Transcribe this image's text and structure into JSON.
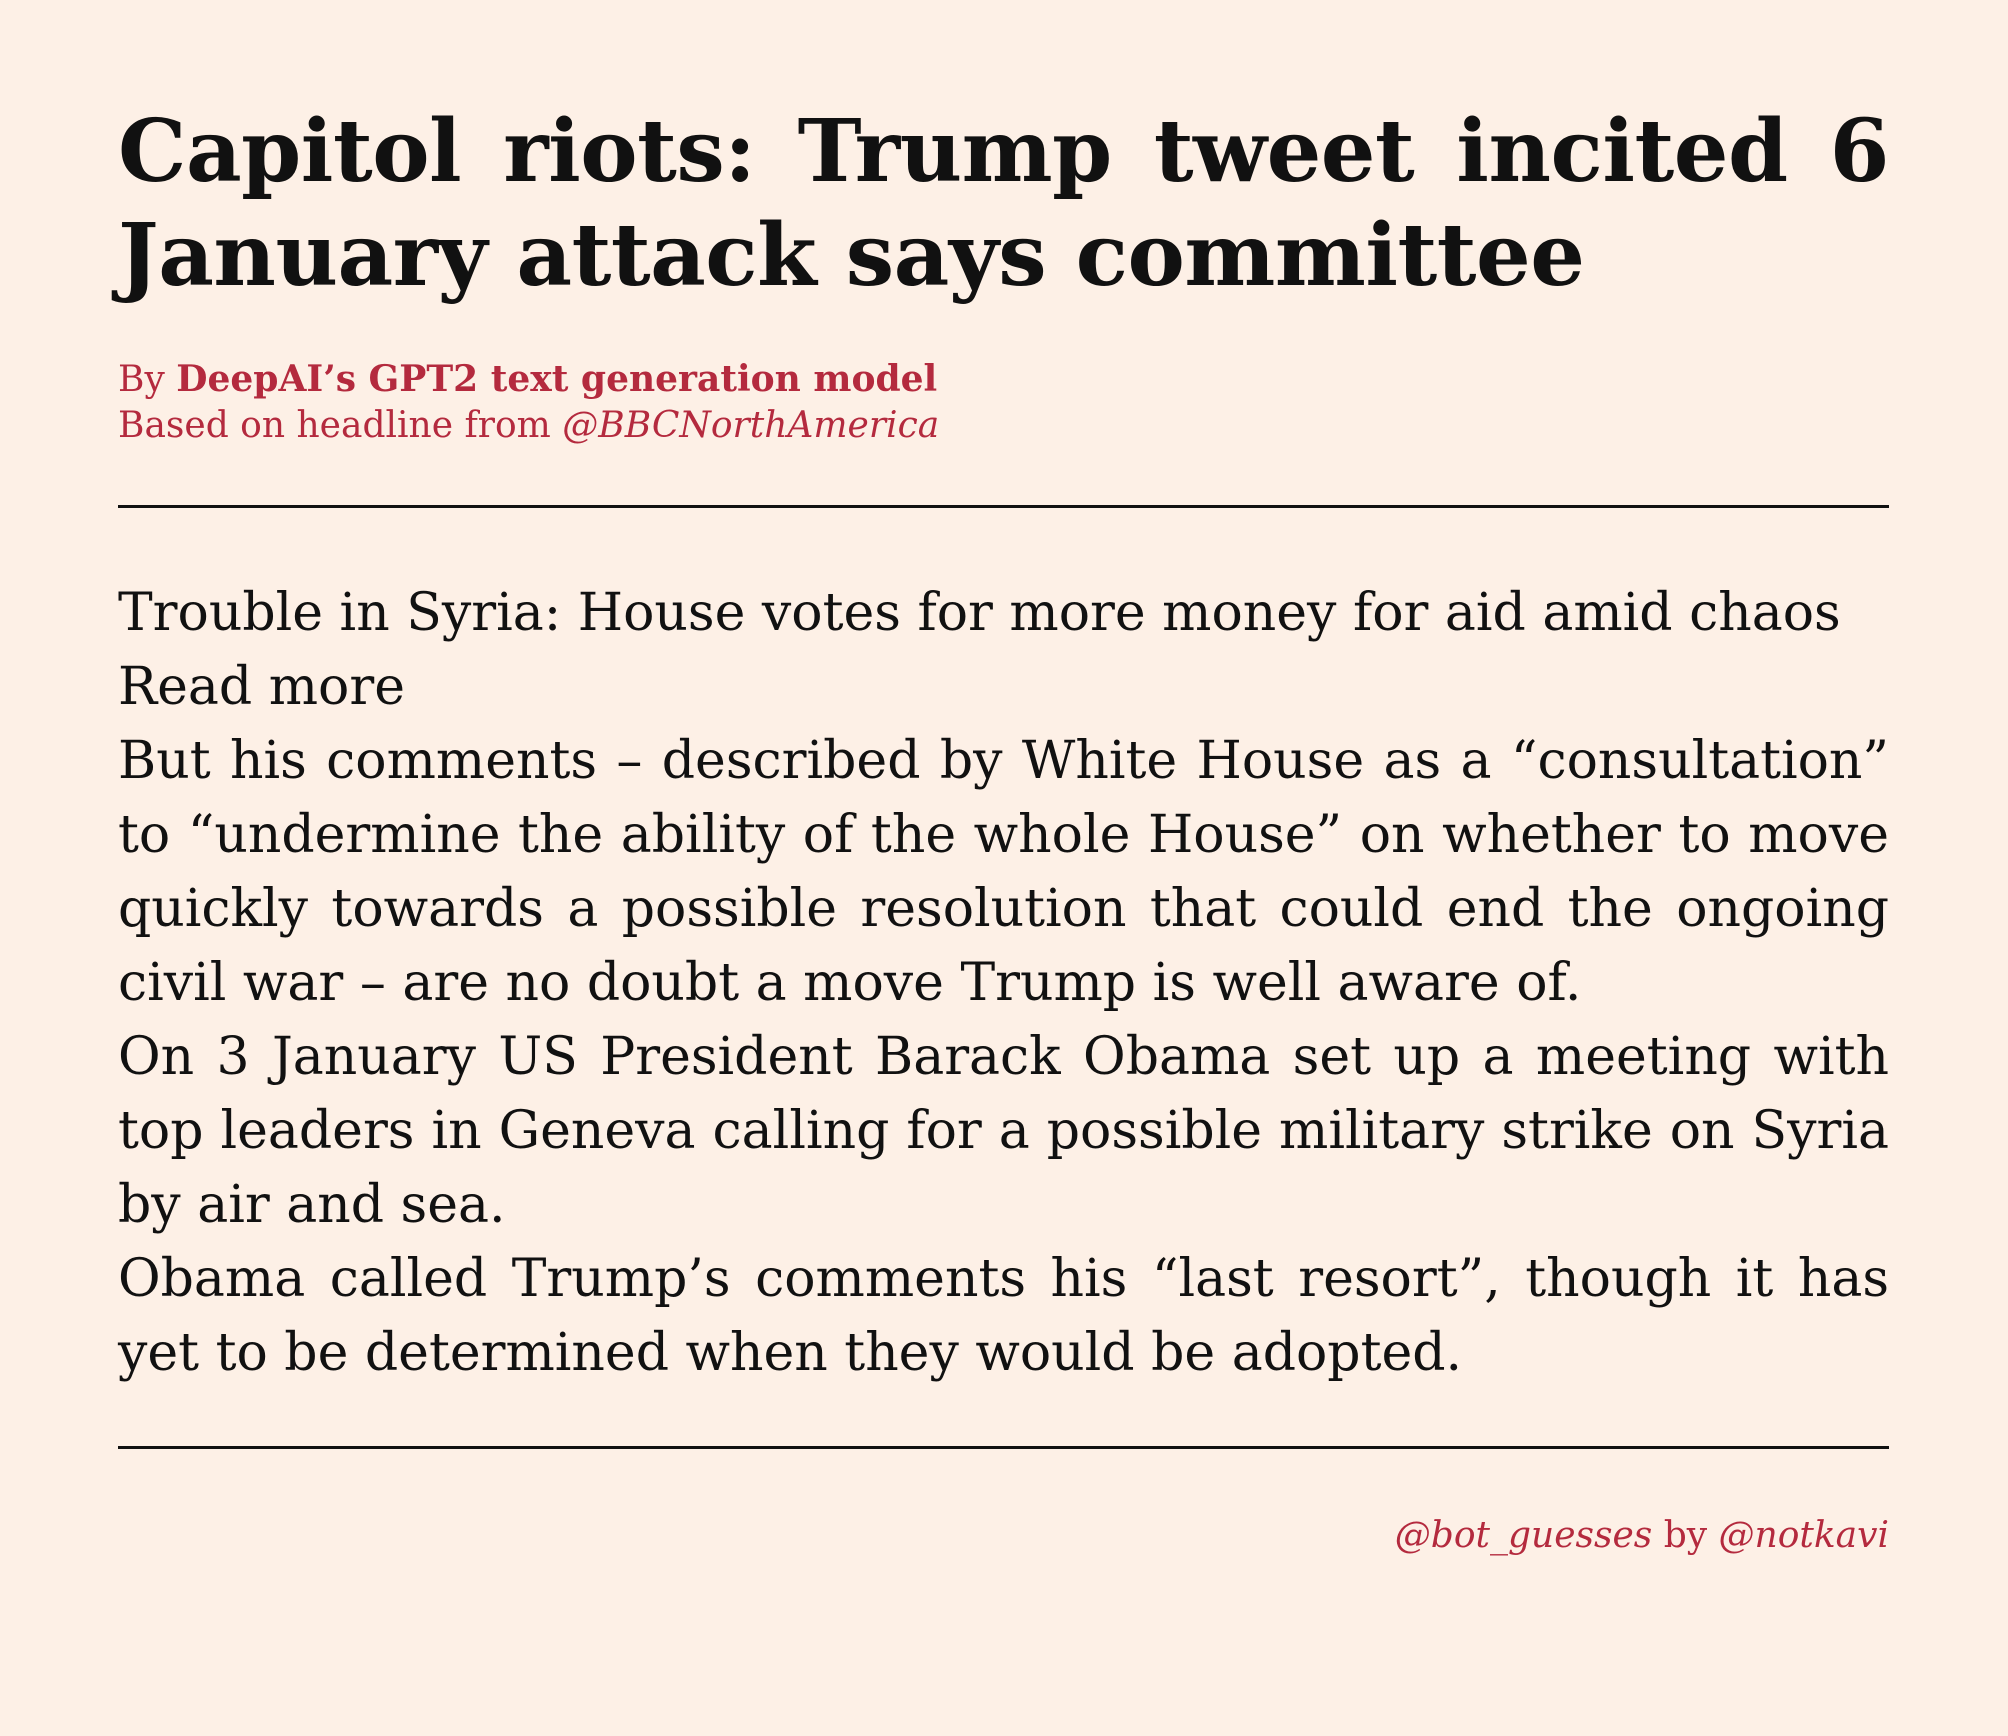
{
  "article": {
    "headline": "Capitol riots: Trump tweet incited 6 January attack says committee",
    "byline": {
      "prefix": "By",
      "author": "DeepAI’s GPT2 text generation model",
      "source_prefix": "Based on headline from",
      "source_handle": "@BBCNorthAmerica"
    },
    "paragraphs": [
      "Trouble in Syria: House votes for more money for aid amid chaos",
      "Read more",
      "But his comments – described by White House as a “consultation” to “undermine the ability of the whole House” on whether to move quickly towards a possible resolution that could end the ongoing civil war – are no doubt a move Trump is well aware of.",
      "On 3 January US President Barack Obama set up a meeting with top leaders in Geneva calling for a possible military strike on Syria by air and sea.",
      "Obama called Trump’s comments his “last resort”, though it has yet to be determined when they would be adopted."
    ]
  },
  "footer": {
    "bot_handle": "@bot_guesses",
    "by_word": "by",
    "author_handle": "@notkavi"
  },
  "colors": {
    "background": "#fdf0e6",
    "text": "#111111",
    "accent": "#b42a3e"
  }
}
